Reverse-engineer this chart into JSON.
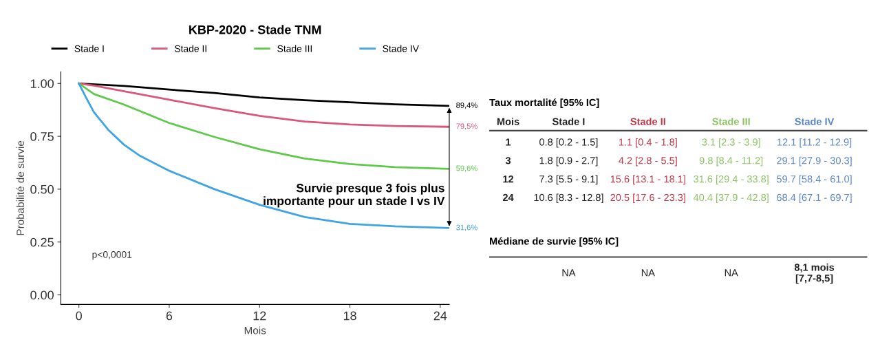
{
  "chart_data": [
    {
      "type": "line",
      "title": "KBP-2020 - Stade TNM",
      "xlabel": "Mois",
      "ylabel": "Probabilité de survie",
      "xlim": [
        -1.2,
        24.6
      ],
      "ylim": [
        -0.045,
        1.055
      ],
      "xticks": [
        0,
        6,
        12,
        18,
        24
      ],
      "yticks": [
        {
          "value": 0,
          "label": "0.00"
        },
        {
          "value": 0.25,
          "label": "0.25"
        },
        {
          "value": 0.5,
          "label": "0.50"
        },
        {
          "value": 0.75,
          "label": "0.75"
        },
        {
          "value": 1,
          "label": "1.00"
        }
      ],
      "grid": false,
      "legend": "top",
      "marker": "none",
      "line_style": "solid",
      "series": [
        {
          "name": "Stade I",
          "color": "#000000",
          "x": [
            0,
            3,
            6,
            9,
            12,
            15,
            18,
            21,
            24.6
          ],
          "values": [
            1.0,
            0.988,
            0.971,
            0.955,
            0.934,
            0.921,
            0.911,
            0.901,
            0.894
          ],
          "value_labels": [
            null,
            null,
            null,
            null,
            null,
            null,
            null,
            null,
            "89,4%"
          ]
        },
        {
          "name": "Stade II",
          "color": "#d9577a",
          "x": [
            0,
            1,
            3,
            6,
            9,
            12,
            15,
            18,
            21,
            24.6
          ],
          "values": [
            1.0,
            0.99,
            0.963,
            0.923,
            0.883,
            0.847,
            0.82,
            0.806,
            0.799,
            0.795
          ],
          "value_labels": [
            null,
            null,
            null,
            null,
            null,
            null,
            null,
            null,
            null,
            "79,5%"
          ]
        },
        {
          "name": "Stade III",
          "color": "#5ec94a",
          "x": [
            0,
            1,
            3,
            6,
            9,
            12,
            15,
            18,
            21,
            24.6
          ],
          "values": [
            1.0,
            0.95,
            0.9,
            0.813,
            0.747,
            0.689,
            0.645,
            0.619,
            0.604,
            0.596
          ],
          "value_labels": [
            null,
            null,
            null,
            null,
            null,
            null,
            null,
            null,
            null,
            "59,6%"
          ]
        },
        {
          "name": "Stade IV",
          "color": "#3ea4e4",
          "x": [
            0,
            0.5,
            1,
            2,
            3,
            4,
            6,
            9,
            12,
            15,
            18,
            21,
            24.6
          ],
          "values": [
            1.0,
            0.93,
            0.864,
            0.777,
            0.71,
            0.66,
            0.587,
            0.5,
            0.426,
            0.368,
            0.336,
            0.324,
            0.316
          ],
          "value_labels": [
            null,
            null,
            null,
            null,
            null,
            null,
            null,
            null,
            null,
            null,
            null,
            null,
            "31,6%"
          ]
        }
      ],
      "annotations": [
        "Survie presque 3 fois plus\nimportante pour un stade I vs IV",
        "p<0,0001"
      ]
    },
    {
      "type": "other",
      "title": "Taux mortalité [95% IC]",
      "categories": [
        "Mois",
        "Stade I",
        "Stade II",
        "Stade III",
        "Stade IV"
      ],
      "colors": [
        "#222222",
        "#222222",
        "#c0394b",
        "#8cc465",
        "#5b86c5"
      ],
      "annotations": [
        "1",
        "0.8 [0.2 - 1.5]",
        "1.1 [0.4 - 1.8]",
        "3.1 [2.3 - 3.9]",
        "12.1 [11.2 - 12.9]",
        "3",
        "1.8 [0.9 - 2.7]",
        "4.2 [2.8 - 5.5]",
        "9.8 [8.4 - 11.2]",
        "29.1 [27.9 - 30.3]",
        "12",
        "7.3 [5.5 - 9.1]",
        "15.6 [13.1 - 18.1]",
        "31.6 [29.4 - 33.8]",
        "59.7 [58.4 - 61.0]",
        "24",
        "10.6 [8.3 - 12.8]",
        "20.5 [17.6 - 23.3]",
        "40.4 [37.9 - 42.8]",
        "68.4 [67.1 - 69.7]"
      ]
    },
    {
      "type": "other",
      "title": "Médiane de survie [95% IC]",
      "annotations": [
        "NA",
        "NA",
        "NA",
        "8,1 mois\n[7,7-8,5]"
      ]
    }
  ]
}
